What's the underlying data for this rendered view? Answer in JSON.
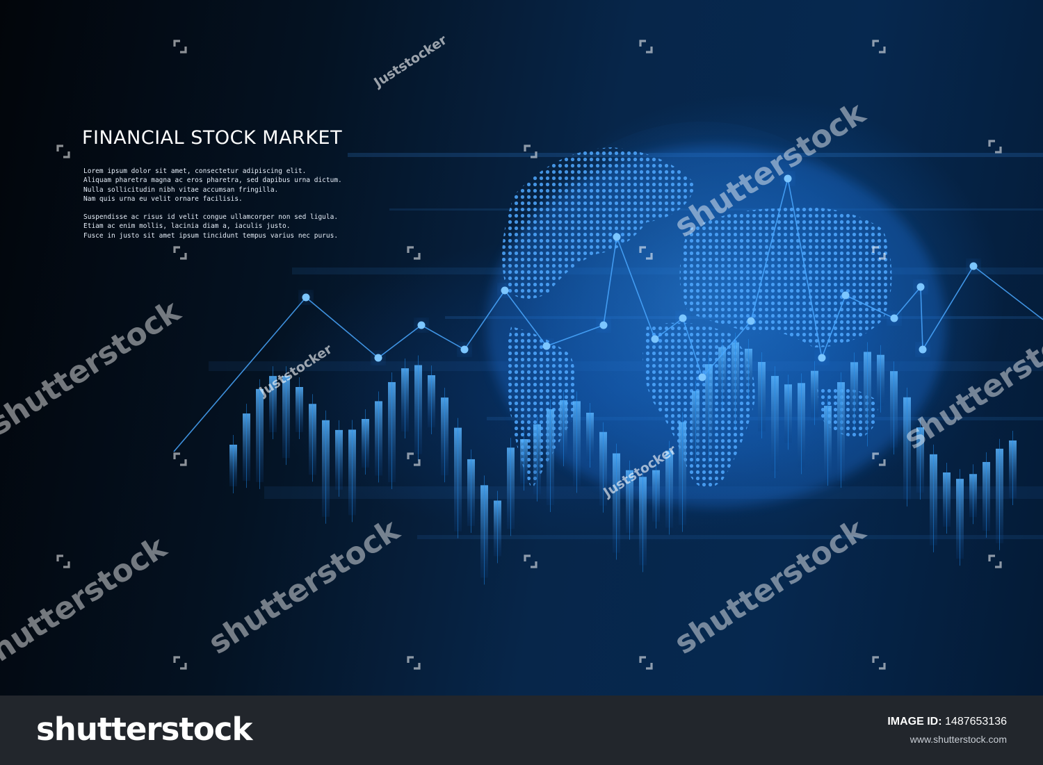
{
  "artwork": {
    "headline": "FINANCIAL STOCK MARKET",
    "paragraph_1": [
      "Lorem ipsum dolor sit amet, consectetur adipiscing elit.",
      "Aliquam pharetra magna ac eros pharetra, sed dapibus urna dictum.",
      "Nulla sollicitudin nibh vitae accumsan fringilla.",
      "Nam quis urna eu velit ornare facilisis."
    ],
    "paragraph_2": [
      "Suspendisse ac risus id velit congue ullamcorper non sed ligula.",
      "Etiam ac enim mollis, lacinia diam a, iaculis justo.",
      "Fusce in justo sit amet ipsum tincidunt tempus varius nec purus."
    ],
    "colors": {
      "background_dark": "#02050a",
      "background_blue": "#07264a",
      "glow": "#2a8cff",
      "line": "#4aa8ff",
      "bar": "#1f8ef0"
    },
    "globe_icon": "dotted-world-globe",
    "chart_style": "decorative candlestick bars with line overlay (no axes or values printed)"
  },
  "watermark": {
    "logo_text": "shutterstock",
    "author_text": "Juststocker",
    "mark_icon": "shutterstock-bracket-icon"
  },
  "footer": {
    "logo_text": "shutterstock",
    "image_id_label": "IMAGE ID:",
    "image_id_value": "1487653136",
    "url": "www.shutterstock.com"
  }
}
